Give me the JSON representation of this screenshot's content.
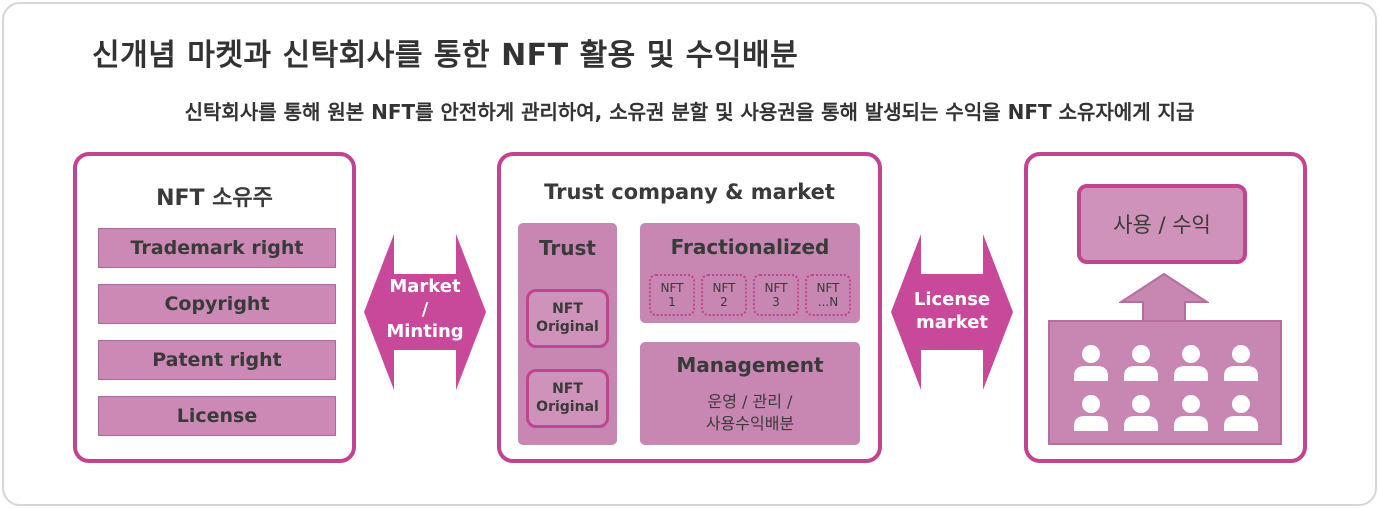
{
  "title": "신개념 마켓과 신탁회사를 통한 NFT 활용 및 수익배분",
  "subtitle": "신탁회사를 통해 원본 NFT를 안전하게 관리하여, 소유권 분할 및 사용권을 통해 발생되는 수익을 NFT 소유자에게 지급",
  "colors": {
    "accent": "#c04490",
    "fill": "#c886b2",
    "light_fill": "#cf93bb"
  },
  "owner": {
    "title": "NFT 소유주",
    "rights": [
      "Trademark right",
      "Copyright",
      "Patent right",
      "License"
    ]
  },
  "arrow_left": {
    "line1": "Market",
    "line2": "/",
    "line3": "Minting"
  },
  "trust": {
    "title": "Trust company & market",
    "trust_block": {
      "title": "Trust",
      "originals": [
        {
          "l1": "NFT",
          "l2": "Original"
        },
        {
          "l1": "NFT",
          "l2": "Original"
        }
      ]
    },
    "fractionalized": {
      "title": "Fractionalized",
      "chips": [
        {
          "l1": "NFT",
          "l2": "1"
        },
        {
          "l1": "NFT",
          "l2": "2"
        },
        {
          "l1": "NFT",
          "l2": "3"
        },
        {
          "l1": "NFT",
          "l2": "...N"
        }
      ]
    },
    "management": {
      "title": "Management",
      "line1": "운영 / 관리 /",
      "line2": "사용수익배분"
    }
  },
  "arrow_right": {
    "line1": "License",
    "line2": "market"
  },
  "usage": {
    "label": "사용 / 수익",
    "icon": "up-arrow-icon",
    "people_icon": "user-icon"
  }
}
